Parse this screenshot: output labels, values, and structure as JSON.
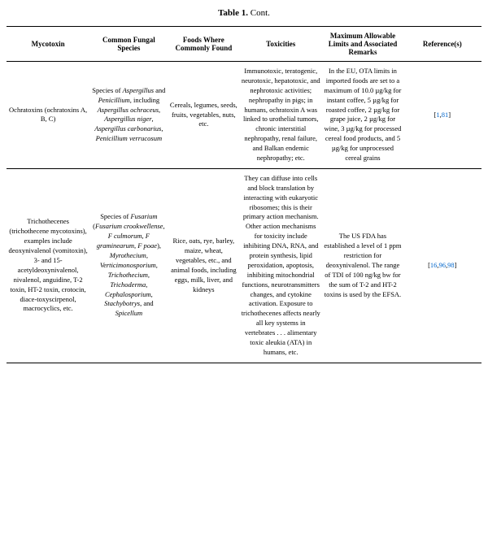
{
  "caption_bold": "Table 1.",
  "caption_rest": " Cont.",
  "headers": {
    "c1": "Mycotoxin",
    "c2": "Common Fungal Species",
    "c3": "Foods Where Commonly Found",
    "c4": "Toxicities",
    "c5": "Maximum Allowable Limits and Associated Remarks",
    "c6": "Reference(s)"
  },
  "row1": {
    "mycotoxin": "Ochratoxins (ochratoxins A, B, C)",
    "species_pre": "Species of ",
    "species_italic1": "Aspergillus",
    "species_mid1": " and ",
    "species_italic2": "Penicillium",
    "species_mid2": ", including ",
    "species_italic3": "Aspergillus ochraceus",
    "species_mid3": ", ",
    "species_italic4": "Aspergillus niger",
    "species_mid4": ", ",
    "species_italic5": "Aspergillus carbonarius",
    "species_mid5": ", ",
    "species_italic6": "Penicillium verrucosum",
    "foods": "Cereals, legumes, seeds, fruits, vegetables, nuts, etc.",
    "tox": "Immunotoxic, teratogenic, neurotoxic, hepatotoxic, and nephrotoxic activities; nephropathy in pigs; in humans, ochratoxin A was linked to urothelial tumors, chronic interstitial nephropathy, renal failure, and Balkan endemic nephropathy; etc.",
    "limits": "In the EU, OTA limits in imported foods are set to a maximum of 10.0 µg/kg for instant coffee, 5 µg/kg for roasted coffee, 2 µg/kg for grape juice, 2 µg/kg for wine, 3 µg/kg for processed cereal food products, and 5 µg/kg for unprocessed cereal grains",
    "ref_open": "[",
    "ref1": "1",
    "ref_sep": ",",
    "ref2": "81",
    "ref_close": "]"
  },
  "row2": {
    "mycotoxin": "Trichothecenes (trichothecene mycotoxins), examples include deoxynivalenol (vomitoxin), 3- and 15-acetyldeoxynivalenol, nivalenol, anguidine, T-2 toxin, HT-2 toxin, crotocin, diace-toxyscirpenol, macrocyclics, etc.",
    "species_pre": "Species of ",
    "species_i1": "Fusarium",
    "species_m1": " (",
    "species_i2": "Fusarium crookwellense",
    "species_m2": ", ",
    "species_i3": "F culmorum",
    "species_m3": ", ",
    "species_i4": "F graminearum",
    "species_m4": ", ",
    "species_i5": "F poae",
    "species_m5": "), ",
    "species_i6": "Myrothecium",
    "species_m6": ", ",
    "species_i7": "Verticimonosporium",
    "species_m7": ", ",
    "species_i8": "Trichothecium",
    "species_m8": ", ",
    "species_i9": "Trichoderma",
    "species_m9": ", ",
    "species_i10": "Cephalosporium",
    "species_m10": ", ",
    "species_i11": "Stachybotrys",
    "species_m11": ", and ",
    "species_i12": "Spicellum",
    "foods": "Rice, oats, rye, barley, maize, wheat, vegetables, etc., and animal foods, including eggs, milk, liver, and kidneys",
    "tox": "They can diffuse into cells and block translation by interacting with eukaryotic ribosomes; this is their primary action mechanism. Other action mechanisms for toxicity include inhibiting DNA, RNA, and protein synthesis, lipid peroxidation, apoptosis, inhibiting mitochondrial functions, neurotransmitters changes, and cytokine activation. Exposure to trichothecenes affects nearly all key systems in vertebrates . . . alimentary toxic aleukia (ATA) in humans, etc.",
    "limits": "The US FDA has established a level of 1 ppm restriction for deoxynivalenol. The range of TDI of 100 ng/kg bw for the sum of T-2 and HT-2 toxins is used by the EFSA.",
    "ref_open": "[",
    "ref1": "16",
    "ref_sep1": ",",
    "ref2": "96",
    "ref_sep2": ",",
    "ref3": "98",
    "ref_close": "]"
  }
}
